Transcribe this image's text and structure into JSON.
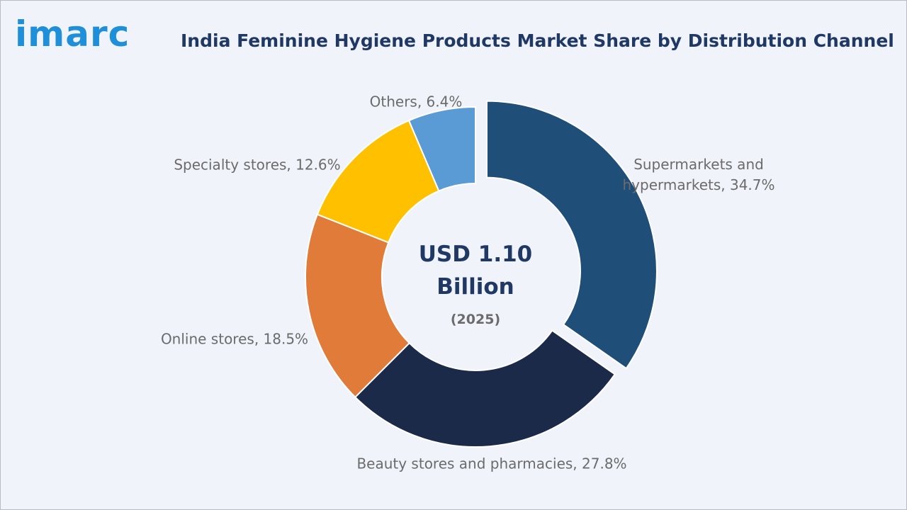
{
  "logo": "imarc",
  "chart_data": {
    "type": "donut",
    "title": "India Feminine Hygiene Products Market Share by Distribution Channel",
    "center_text": "USD 1.10 Billion",
    "center_subtext": "(2025)",
    "values": [
      34.7,
      27.8,
      18.5,
      12.6,
      6.4
    ],
    "value_labels": [
      "Supermarkets and hypermarkets, 34.7%",
      "Beauty stores and pharmacies, 27.8%",
      "Online stores, 18.5%",
      "Specialty stores, 12.6%",
      "Others, 6.4%"
    ],
    "colors": [
      "#1f4e79",
      "#1c2a4a",
      "#e07b39",
      "#ffc000",
      "#5b9bd5"
    ]
  }
}
